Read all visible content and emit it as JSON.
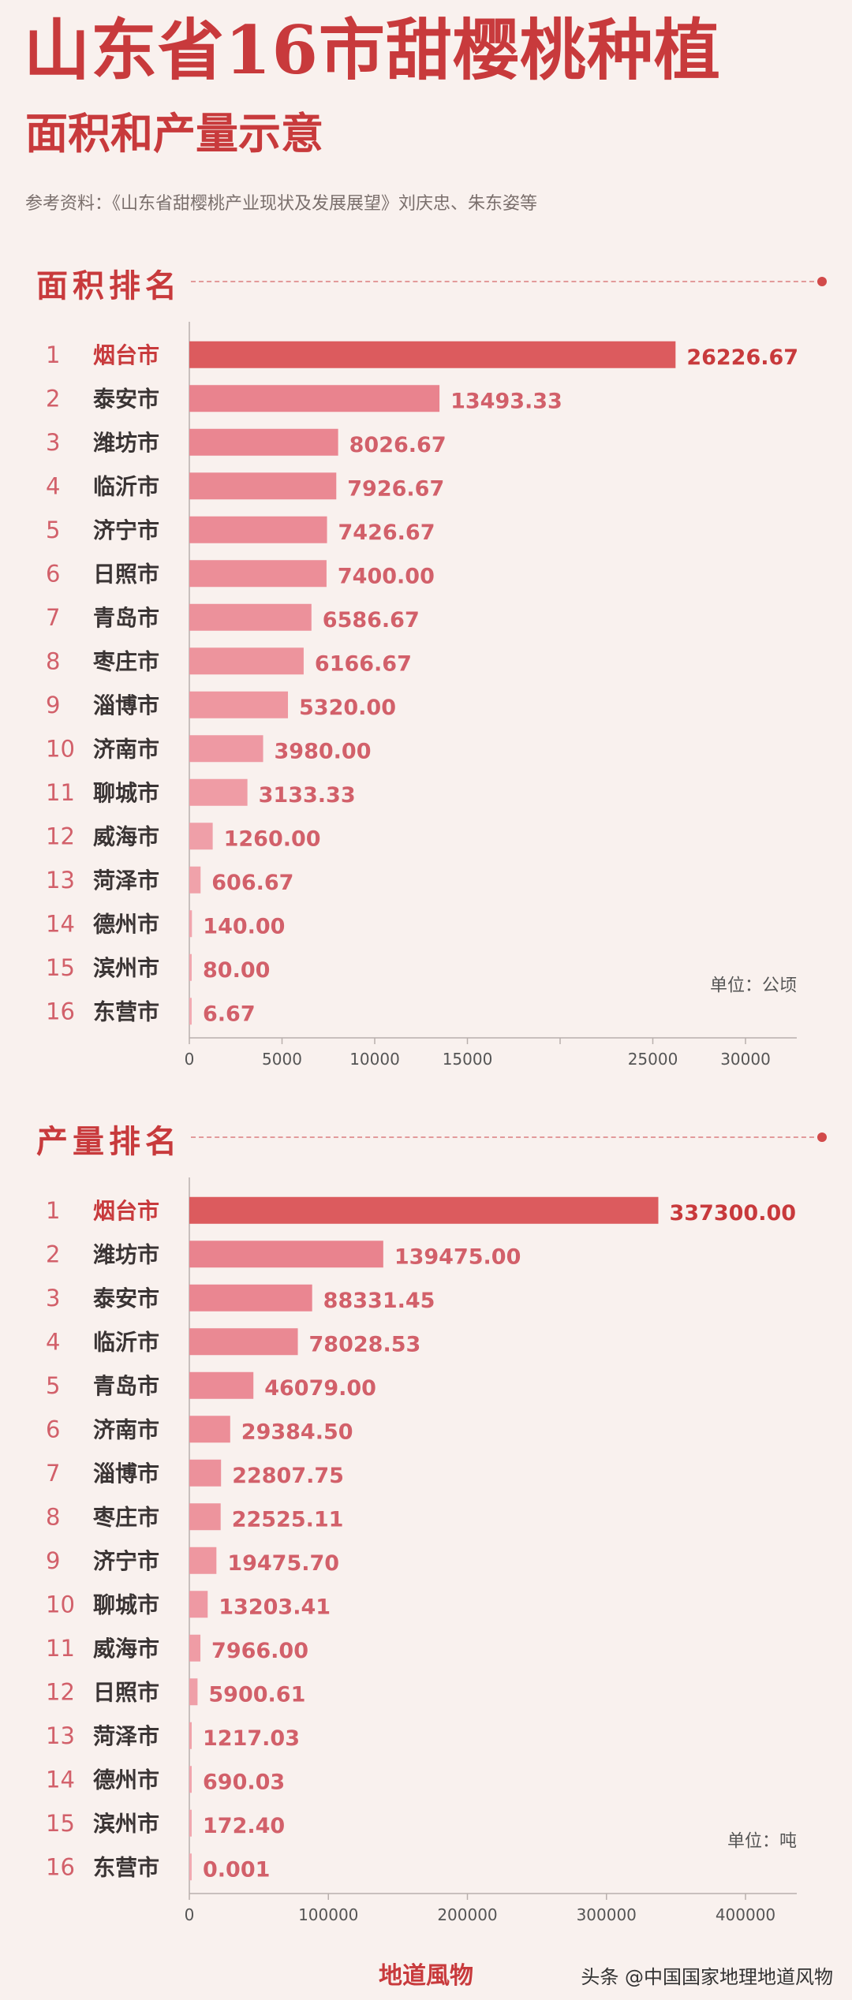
{
  "header": {
    "title": "山东省16市甜樱桃种植",
    "subtitle": "面积和产量示意",
    "source": "参考资料：《山东省甜樱桃产业现状及发展展望》刘庆忠、朱东姿等"
  },
  "footer": {
    "brand": "地道風物",
    "credit": "头条 @中国国家地理地道风物"
  },
  "colors": {
    "accent": "#c83a3c",
    "top_bar": "#dc5b5e",
    "bar_dark": "#e9838e",
    "bar_light": "#f2aab2",
    "label_text": "#3a3434",
    "rank_text": "#d2606a"
  },
  "chart_data": [
    {
      "type": "bar",
      "orientation": "horizontal",
      "title": "面积排名",
      "unit_label": "单位：公顷",
      "categories": [
        "烟台市",
        "泰安市",
        "潍坊市",
        "临沂市",
        "济宁市",
        "日照市",
        "青岛市",
        "枣庄市",
        "淄博市",
        "济南市",
        "聊城市",
        "威海市",
        "菏泽市",
        "德州市",
        "滨州市",
        "东营市"
      ],
      "ranks": [
        "1",
        "2",
        "3",
        "4",
        "5",
        "6",
        "7",
        "8",
        "9",
        "10",
        "11",
        "12",
        "13",
        "14",
        "15",
        "16"
      ],
      "values": [
        26226.67,
        13493.33,
        8026.67,
        7926.67,
        7426.67,
        7400.0,
        6586.67,
        6166.67,
        5320.0,
        3980.0,
        3133.33,
        1260.0,
        606.67,
        140.0,
        80.0,
        6.67
      ],
      "value_labels": [
        "26226.67",
        "13493.33",
        "8026.67",
        "7926.67",
        "7426.67",
        "7400.00",
        "6586.67",
        "6166.67",
        "5320.00",
        "3980.00",
        "3133.33",
        "1260.00",
        "606.67",
        "140.00",
        "80.00",
        "6.67"
      ],
      "xlim": [
        0,
        30000
      ],
      "xticks": [
        0,
        5000,
        10000,
        15000,
        20000,
        25000,
        30000
      ],
      "xtick_labels": [
        "0",
        "5000",
        "10000",
        "15000",
        "25000",
        "30000"
      ],
      "xtick_label_values": [
        0,
        5000,
        10000,
        15000,
        25000,
        30000
      ]
    },
    {
      "type": "bar",
      "orientation": "horizontal",
      "title": "产量排名",
      "unit_label": "单位：吨",
      "categories": [
        "烟台市",
        "潍坊市",
        "泰安市",
        "临沂市",
        "青岛市",
        "济南市",
        "淄博市",
        "枣庄市",
        "济宁市",
        "聊城市",
        "威海市",
        "日照市",
        "菏泽市",
        "德州市",
        "滨州市",
        "东营市"
      ],
      "ranks": [
        "1",
        "2",
        "3",
        "4",
        "5",
        "6",
        "7",
        "8",
        "9",
        "10",
        "11",
        "12",
        "13",
        "14",
        "15",
        "16"
      ],
      "values": [
        337300.0,
        139475.0,
        88331.45,
        78028.53,
        46079.0,
        29384.5,
        22807.75,
        22525.11,
        19475.7,
        13203.41,
        7966.0,
        5900.61,
        1217.03,
        690.03,
        172.4,
        0.001
      ],
      "value_labels": [
        "337300.00",
        "139475.00",
        "88331.45",
        "78028.53",
        "46079.00",
        "29384.50",
        "22807.75",
        "22525.11",
        "19475.70",
        "13203.41",
        "7966.00",
        "5900.61",
        "1217.03",
        "690.03",
        "172.40",
        "0.001"
      ],
      "xlim": [
        0,
        400000
      ],
      "xticks": [
        0,
        100000,
        200000,
        300000,
        400000
      ],
      "xtick_labels": [
        "0",
        "100000",
        "200000",
        "300000",
        "400000"
      ],
      "xtick_label_values": [
        0,
        100000,
        200000,
        300000,
        400000
      ]
    }
  ]
}
